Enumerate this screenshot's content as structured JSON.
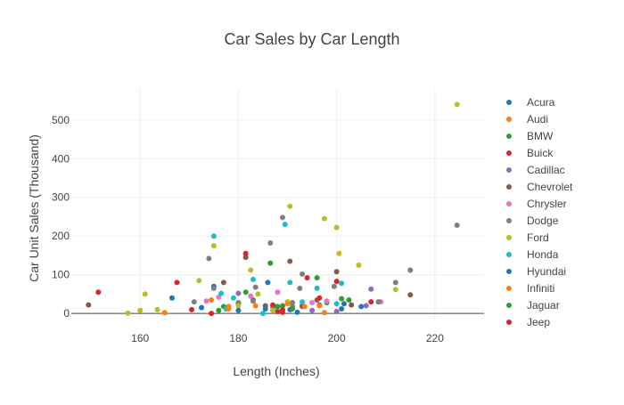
{
  "chart_data": {
    "type": "scatter",
    "title": "Car Sales by Car Length",
    "xlabel": "Length (Inches)",
    "ylabel": "Car Unit Sales (Thousand)",
    "xlim": [
      146,
      230
    ],
    "ylim": [
      -18,
      580
    ],
    "xticks": [
      160,
      180,
      200,
      220
    ],
    "yticks": [
      0,
      100,
      200,
      300,
      400,
      500
    ],
    "grid": true,
    "legend": "right",
    "series": [
      {
        "name": "Acura",
        "color": "#1f77b4",
        "points": [
          [
            166.5,
            40
          ],
          [
            190.5,
            10
          ],
          [
            196.5,
            22
          ],
          [
            201.5,
            25
          ],
          [
            175,
            70
          ]
        ]
      },
      {
        "name": "Audi",
        "color": "#ff7f0e",
        "points": [
          [
            165,
            2
          ],
          [
            174.5,
            35
          ],
          [
            178,
            18
          ],
          [
            196.5,
            20
          ],
          [
            197.5,
            2
          ]
        ]
      },
      {
        "name": "BMW",
        "color": "#2ca02c",
        "points": [
          [
            177,
            18
          ],
          [
            186.5,
            130
          ],
          [
            189,
            20
          ],
          [
            196,
            92
          ],
          [
            198,
            28
          ],
          [
            201,
            38
          ],
          [
            202.5,
            35
          ]
        ]
      },
      {
        "name": "Buick",
        "color": "#d62728",
        "points": [
          [
            174.5,
            0
          ],
          [
            189,
            10
          ],
          [
            194,
            92
          ],
          [
            200,
            83
          ],
          [
            207,
            30
          ],
          [
            188,
            5
          ]
        ]
      },
      {
        "name": "Cadillac",
        "color": "#9467bd",
        "points": [
          [
            180,
            52
          ],
          [
            200,
            5
          ],
          [
            207,
            63
          ],
          [
            206,
            20
          ],
          [
            193,
            18
          ],
          [
            195,
            8
          ]
        ]
      },
      {
        "name": "Chevrolet",
        "color": "#8c564b",
        "points": [
          [
            149.5,
            22
          ],
          [
            180,
            25
          ],
          [
            181.5,
            145
          ],
          [
            183,
            35
          ],
          [
            185.5,
            20
          ],
          [
            190.5,
            135
          ],
          [
            193,
            20
          ],
          [
            200,
            108
          ],
          [
            203,
            22
          ],
          [
            215,
            48
          ],
          [
            177,
            80
          ],
          [
            196,
            35
          ]
        ]
      },
      {
        "name": "Chrysler",
        "color": "#e377c2",
        "points": [
          [
            173.5,
            32
          ],
          [
            176,
            42
          ],
          [
            187,
            15
          ],
          [
            188,
            55
          ],
          [
            195,
            28
          ],
          [
            198,
            32
          ],
          [
            209,
            30
          ],
          [
            182.5,
            45
          ]
        ]
      },
      {
        "name": "Dodge",
        "color": "#7f7f7f",
        "points": [
          [
            171,
            30
          ],
          [
            174,
            142
          ],
          [
            175,
            65
          ],
          [
            180,
            28
          ],
          [
            183,
            32
          ],
          [
            186.5,
            182
          ],
          [
            189,
            248
          ],
          [
            191,
            18
          ],
          [
            192.5,
            65
          ],
          [
            193,
            102
          ],
          [
            199.5,
            70
          ],
          [
            208.5,
            30
          ],
          [
            212,
            80
          ],
          [
            215,
            112
          ],
          [
            224.5,
            228
          ],
          [
            183.5,
            68
          ],
          [
            191,
            28
          ]
        ]
      },
      {
        "name": "Ford",
        "color": "#bcbd22",
        "points": [
          [
            157.5,
            1
          ],
          [
            160,
            8
          ],
          [
            161,
            50
          ],
          [
            172,
            85
          ],
          [
            175,
            175
          ],
          [
            180,
            20
          ],
          [
            182.5,
            112
          ],
          [
            184,
            50
          ],
          [
            190.5,
            277
          ],
          [
            197.5,
            245
          ],
          [
            200,
            222
          ],
          [
            200.5,
            155
          ],
          [
            204.5,
            125
          ],
          [
            212,
            62
          ],
          [
            224.5,
            540
          ],
          [
            190,
            30
          ],
          [
            187,
            8
          ],
          [
            163.5,
            10
          ]
        ]
      },
      {
        "name": "Honda",
        "color": "#17becf",
        "points": [
          [
            175,
            200
          ],
          [
            176.5,
            52
          ],
          [
            179,
            40
          ],
          [
            183,
            88
          ],
          [
            185,
            0
          ],
          [
            187.5,
            18
          ],
          [
            189.5,
            230
          ],
          [
            190.5,
            80
          ],
          [
            193,
            30
          ],
          [
            196,
            65
          ],
          [
            200,
            25
          ],
          [
            201,
            78
          ],
          [
            177.5,
            12
          ]
        ]
      },
      {
        "name": "Hyundai",
        "color": "#1f77b4",
        "points": [
          [
            172.5,
            15
          ],
          [
            180,
            8
          ],
          [
            186,
            80
          ],
          [
            192,
            3
          ],
          [
            201,
            12
          ],
          [
            205,
            18
          ],
          [
            185.5,
            12
          ]
        ]
      },
      {
        "name": "Infiniti",
        "color": "#ff7f0e",
        "points": [
          [
            178,
            12
          ],
          [
            183.5,
            20
          ],
          [
            190,
            25
          ],
          [
            193.5,
            18
          ]
        ]
      },
      {
        "name": "Jaguar",
        "color": "#2ca02c",
        "points": [
          [
            176,
            8
          ],
          [
            181.5,
            55
          ],
          [
            188,
            18
          ],
          [
            191,
            12
          ]
        ]
      },
      {
        "name": "Jeep",
        "color": "#d62728",
        "points": [
          [
            151.5,
            55
          ],
          [
            167.5,
            80
          ],
          [
            170.5,
            10
          ],
          [
            181.5,
            155
          ],
          [
            189,
            3
          ],
          [
            196.5,
            40
          ],
          [
            187,
            22
          ]
        ]
      }
    ]
  }
}
